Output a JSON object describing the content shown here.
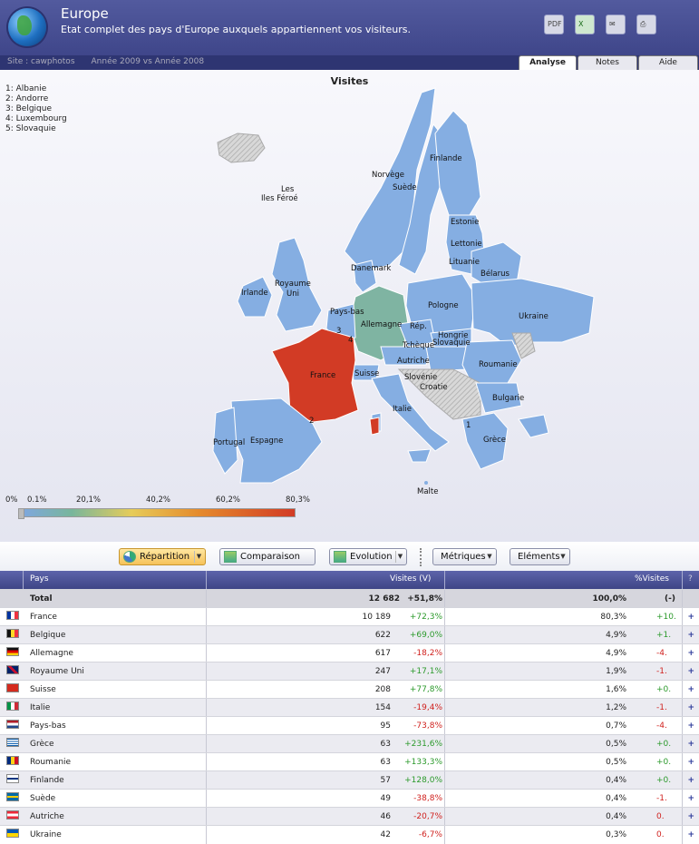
{
  "header": {
    "title": "Europe",
    "subtitle": "Etat complet des pays d'Europe auxquels appartiennent vos visiteurs.",
    "icons": [
      "pdf-icon",
      "excel-icon",
      "email-icon",
      "print-icon"
    ]
  },
  "subbar": {
    "site": "Site : cawphotos",
    "period": "Année 2009 vs Année 2008"
  },
  "tabs": [
    "Analyse",
    "Notes",
    "Aide"
  ],
  "map": {
    "title": "Visites",
    "legend_items": [
      "1: Albanie",
      "2: Andorre",
      "3: Belgique",
      "4: Luxembourg",
      "5: Slovaquie"
    ],
    "labels": {
      "les_iles_feroe_1": "Les",
      "les_iles_feroe_2": "Iles Féroé",
      "norvege": "Norvège",
      "suede": "Suède",
      "finlande": "Finlande",
      "estonie": "Estonie",
      "lettonie": "Lettonie",
      "lituanie": "Lituanie",
      "belarus": "Bélarus",
      "danemark": "Danemark",
      "irlande": "Irlande",
      "royaume_uni_1": "Royaume",
      "royaume_uni_2": "Uni",
      "pays_bas": "Pays-bas",
      "allemagne": "Allemagne",
      "pologne": "Pologne",
      "ukraine": "Ukraine",
      "rep": "Rép.",
      "tcheque": "Tchèque",
      "slovaquie": "Slovaquie",
      "autriche": "Autriche",
      "hongrie": "Hongrie",
      "roumanie": "Roumanie",
      "france": "France",
      "suisse": "Suisse",
      "slovenie": "Slovénie",
      "croatie": "Croatie",
      "bulgarie": "Bulgarie",
      "italie": "Italie",
      "espagne": "Espagne",
      "portugal": "Portugal",
      "grece": "Grèce",
      "malte": "Malte",
      "n1": "1",
      "n2": "2",
      "n3": "3",
      "n4": "4"
    },
    "scale_labels": [
      "0%",
      "0.1%",
      "20,1%",
      "40,2%",
      "60,2%",
      "80,3%"
    ],
    "colors": {
      "low": "#7fa7de",
      "mid_low": "#7fb4a2",
      "high": "#d23b25",
      "none": "#c8c8c8"
    }
  },
  "toolbar": {
    "repartition": "Répartition",
    "comparaison": "Comparaison",
    "evolution": "Evolution",
    "metriques": "Métriques",
    "elements": "Eléments"
  },
  "table": {
    "headers": {
      "pays": "Pays",
      "visites": "Visites (V)",
      "pct": "%Visites",
      "help": "?"
    },
    "total": {
      "label": "Total",
      "visits": "12 682",
      "delta": "+51,8%",
      "pct": "100,0%",
      "pct_delta": "(-)"
    },
    "rows": [
      {
        "country": "France",
        "visits": "10 189",
        "delta": "+72,3%",
        "sign": "pos",
        "pct": "80,3%",
        "pct_delta": "+10.",
        "pds": "pos",
        "flag": "fr"
      },
      {
        "country": "Belgique",
        "visits": "622",
        "delta": "+69,0%",
        "sign": "pos",
        "pct": "4,9%",
        "pct_delta": "+1.",
        "pds": "pos",
        "flag": "be"
      },
      {
        "country": "Allemagne",
        "visits": "617",
        "delta": "-18,2%",
        "sign": "neg",
        "pct": "4,9%",
        "pct_delta": "-4.",
        "pds": "neg",
        "flag": "de"
      },
      {
        "country": "Royaume Uni",
        "visits": "247",
        "delta": "+17,1%",
        "sign": "pos",
        "pct": "1,9%",
        "pct_delta": "-1.",
        "pds": "neg",
        "flag": "uk"
      },
      {
        "country": "Suisse",
        "visits": "208",
        "delta": "+77,8%",
        "sign": "pos",
        "pct": "1,6%",
        "pct_delta": "+0.",
        "pds": "pos",
        "flag": "ch"
      },
      {
        "country": "Italie",
        "visits": "154",
        "delta": "-19,4%",
        "sign": "neg",
        "pct": "1,2%",
        "pct_delta": "-1.",
        "pds": "neg",
        "flag": "it"
      },
      {
        "country": "Pays-bas",
        "visits": "95",
        "delta": "-73,8%",
        "sign": "neg",
        "pct": "0,7%",
        "pct_delta": "-4.",
        "pds": "neg",
        "flag": "nl"
      },
      {
        "country": "Grèce",
        "visits": "63",
        "delta": "+231,6%",
        "sign": "pos",
        "pct": "0,5%",
        "pct_delta": "+0.",
        "pds": "pos",
        "flag": "gr"
      },
      {
        "country": "Roumanie",
        "visits": "63",
        "delta": "+133,3%",
        "sign": "pos",
        "pct": "0,5%",
        "pct_delta": "+0.",
        "pds": "pos",
        "flag": "ro"
      },
      {
        "country": "Finlande",
        "visits": "57",
        "delta": "+128,0%",
        "sign": "pos",
        "pct": "0,4%",
        "pct_delta": "+0.",
        "pds": "pos",
        "flag": "fi"
      },
      {
        "country": "Suède",
        "visits": "49",
        "delta": "-38,8%",
        "sign": "neg",
        "pct": "0,4%",
        "pct_delta": "-1.",
        "pds": "neg",
        "flag": "se"
      },
      {
        "country": "Autriche",
        "visits": "46",
        "delta": "-20,7%",
        "sign": "neg",
        "pct": "0,4%",
        "pct_delta": "0.",
        "pds": "neg",
        "flag": "at"
      },
      {
        "country": "Ukraine",
        "visits": "42",
        "delta": "-6,7%",
        "sign": "neg",
        "pct": "0,3%",
        "pct_delta": "0.",
        "pds": "neg",
        "flag": "ua"
      }
    ]
  }
}
